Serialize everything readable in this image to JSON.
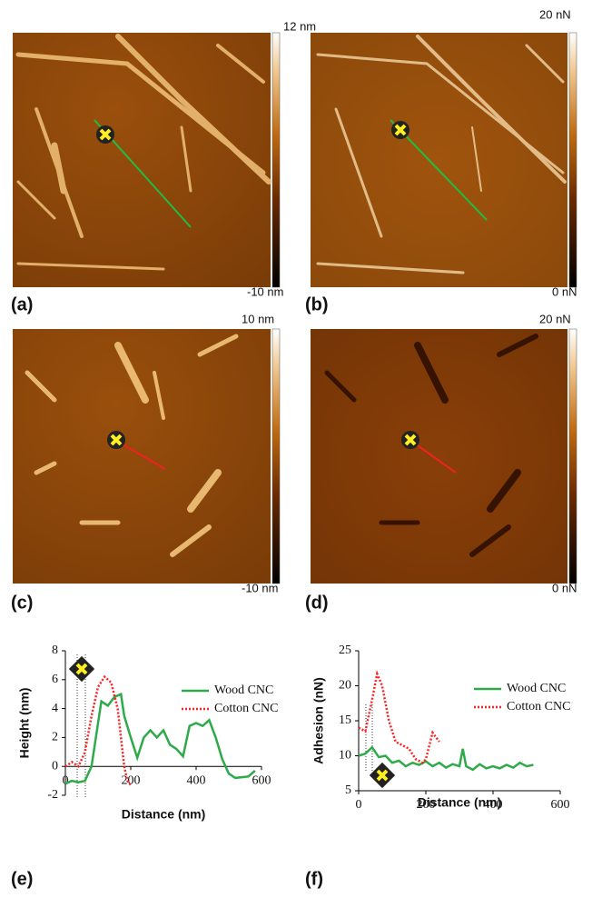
{
  "panels": [
    {
      "label": "(a)",
      "scale_max": "12 nm",
      "scale_min": "-10 nm"
    },
    {
      "label": "(b)",
      "scale_max": "20 nN",
      "scale_min": "0 nN"
    },
    {
      "label": "(c)",
      "scale_max": "10 nm",
      "scale_min": "-10 nm"
    },
    {
      "label": "(d)",
      "scale_max": "20 nN",
      "scale_min": "0 nN"
    }
  ],
  "chart_data": [
    {
      "type": "line",
      "panel_label": "(e)",
      "x_label": "Distance (nm)",
      "y_label": "Height (nm)",
      "xlim": [
        0,
        600
      ],
      "xticks": [
        0,
        200,
        400,
        600
      ],
      "ylim": [
        -2,
        8
      ],
      "yticks": [
        -2,
        0,
        2,
        4,
        6,
        8
      ],
      "series": [
        {
          "name": "Wood CNC",
          "color": "#2eaa4a",
          "style": "solid",
          "x": [
            0,
            20,
            40,
            60,
            80,
            100,
            110,
            130,
            150,
            170,
            180,
            200,
            220,
            240,
            260,
            280,
            300,
            320,
            340,
            360,
            380,
            400,
            420,
            440,
            460,
            480,
            500,
            520,
            560,
            580
          ],
          "values": [
            -1.2,
            -1,
            -1.1,
            -1,
            0,
            3,
            4.5,
            4.2,
            4.8,
            5,
            3.5,
            2,
            0.6,
            2,
            2.5,
            2,
            2.5,
            1.5,
            1.2,
            0.7,
            2.8,
            3,
            2.8,
            3.2,
            2,
            0.5,
            -0.5,
            -0.8,
            -0.7,
            -0.3
          ]
        },
        {
          "name": "Cotton CNC",
          "color": "#ff2020",
          "style": "dotted",
          "x": [
            0,
            20,
            40,
            60,
            80,
            100,
            120,
            140,
            160,
            170,
            180,
            190,
            200
          ],
          "values": [
            0,
            0.3,
            0,
            1,
            3.5,
            5.5,
            6.2,
            5.8,
            4,
            2,
            0,
            -1,
            -1.3
          ]
        }
      ]
    },
    {
      "type": "line",
      "panel_label": "(f)",
      "x_label": "Distance (nm)",
      "y_label": "Adhesion (nN)",
      "xlim": [
        0,
        600
      ],
      "xticks": [
        0,
        200,
        400,
        600
      ],
      "ylim": [
        5,
        25
      ],
      "yticks": [
        5,
        10,
        15,
        20,
        25
      ],
      "series": [
        {
          "name": "Wood CNC",
          "color": "#2eaa4a",
          "style": "solid",
          "x": [
            0,
            20,
            40,
            60,
            80,
            100,
            120,
            140,
            160,
            180,
            200,
            220,
            240,
            260,
            280,
            300,
            310,
            320,
            340,
            360,
            380,
            400,
            420,
            440,
            460,
            480,
            500,
            520
          ],
          "values": [
            10,
            10.3,
            11.2,
            9.8,
            10,
            9,
            9.3,
            8.5,
            9,
            8.7,
            9.2,
            8.5,
            9,
            8.3,
            8.8,
            8.5,
            11,
            8.5,
            8,
            8.8,
            8.2,
            8.5,
            8.2,
            8.7,
            8.3,
            9,
            8.5,
            8.7
          ]
        },
        {
          "name": "Cotton CNC",
          "color": "#ff2020",
          "style": "dotted",
          "x": [
            0,
            20,
            40,
            55,
            70,
            90,
            110,
            130,
            150,
            170,
            190,
            200,
            220,
            240
          ],
          "values": [
            14,
            13.5,
            18,
            21.7,
            20,
            15,
            12,
            11.5,
            11,
            9.5,
            9,
            9.5,
            13.3,
            12
          ]
        }
      ]
    }
  ]
}
